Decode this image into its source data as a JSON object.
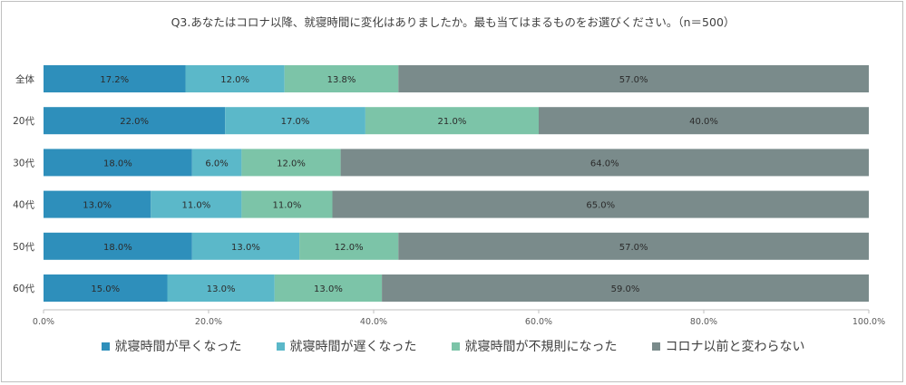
{
  "chart_data": {
    "type": "bar",
    "orientation": "horizontal",
    "stacked": true,
    "percent": true,
    "title": "Q3.あなたはコロナ以降、就寝時間に変化はありましたか。最も当てはまるものをお選びください。（n＝500）",
    "categories": [
      "全体",
      "20代",
      "30代",
      "40代",
      "50代",
      "60代"
    ],
    "series": [
      {
        "name": "就寝時間が早くなった",
        "color": "#2e8fbb",
        "values": [
          17.2,
          22.0,
          18.0,
          13.0,
          18.0,
          15.0
        ],
        "labels": [
          "17.2%",
          "22.0%",
          "18.0%",
          "13.0%",
          "18.0%",
          "15.0%"
        ]
      },
      {
        "name": "就寝時間が遅くなった",
        "color": "#5bb8c9",
        "values": [
          12.0,
          17.0,
          6.0,
          11.0,
          13.0,
          13.0
        ],
        "labels": [
          "12.0%",
          "17.0%",
          "6.0%",
          "11.0%",
          "13.0%",
          "13.0%"
        ]
      },
      {
        "name": "就寝時間が不規則になった",
        "color": "#7cc4a8",
        "values": [
          13.8,
          21.0,
          12.0,
          11.0,
          12.0,
          13.0
        ],
        "labels": [
          "13.8%",
          "21.0%",
          "12.0%",
          "11.0%",
          "12.0%",
          "13.0%"
        ]
      },
      {
        "name": "コロナ以前と変わらない",
        "color": "#7a8b8b",
        "values": [
          57.0,
          40.0,
          64.0,
          65.0,
          57.0,
          59.0
        ],
        "labels": [
          "57.0%",
          "40.0%",
          "64.0%",
          "65.0%",
          "57.0%",
          "59.0%"
        ]
      }
    ],
    "xlim": [
      0,
      100
    ],
    "xticks": [
      0,
      20,
      40,
      60,
      80,
      100
    ],
    "xtick_labels": [
      "0.0%",
      "20.0%",
      "40.0%",
      "60.0%",
      "80.0%",
      "100.0%"
    ],
    "legend": "bottom",
    "grid": false
  }
}
